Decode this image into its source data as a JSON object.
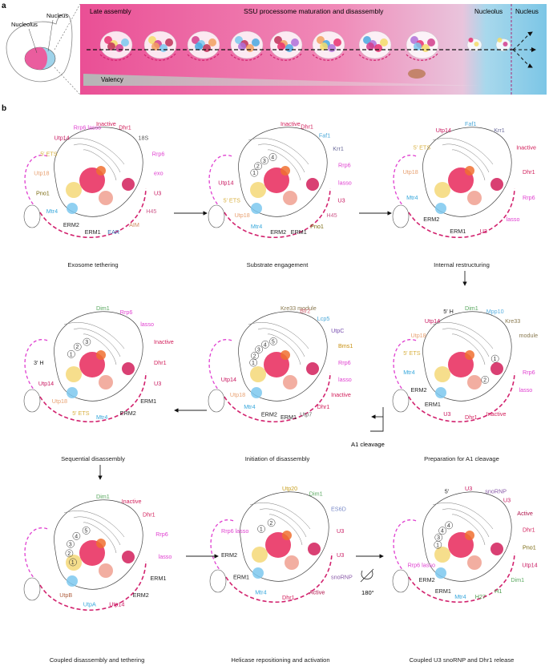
{
  "panel_a": {
    "letter": "a",
    "cell_labels": {
      "nucleolus": "Nucleolus",
      "nucleus": "Nucleus"
    },
    "banner_title": "SSU processome maturation and disassembly",
    "late_assembly": "Late assembly",
    "nucleolus": "Nucleolus",
    "nucleus": "Nucleus",
    "valency": "Valency",
    "colors": {
      "pink": "#e8559a",
      "blue": "#8ccfe8",
      "valency_bar": "#c8c8c8"
    }
  },
  "panel_b": {
    "letter": "b",
    "steps": [
      {
        "caption": "Exosome tethering",
        "labels": [
          "Inactive",
          "Dhr1",
          "18S",
          "Rrp6",
          "exo",
          "U3",
          "H45",
          "AIM",
          "EAR",
          "ERM1",
          "ERM2",
          "Mtr4",
          "Pno1",
          "Utp18",
          "5′ ETS",
          "Utp14",
          "Rrp6 lasso"
        ]
      },
      {
        "caption": "Substrate engagement",
        "labels": [
          "Inactive",
          "Dhr1",
          "Faf1",
          "Krr1",
          "Rrp6",
          "lasso",
          "U3",
          "H45",
          "Pno1",
          "ERM1",
          "ERM2",
          "Mtr4",
          "Utp18",
          "5′ ETS",
          "Utp14",
          "1",
          "2",
          "3",
          "4"
        ]
      },
      {
        "caption": "Internal restructuring",
        "labels": [
          "Faf1",
          "Krr1",
          "Inactive",
          "Dhr1",
          "Rrp6",
          "lasso",
          "U3",
          "ERM1",
          "ERM2",
          "Mtr4",
          "Utp18",
          "5′ ETS",
          "Utp14"
        ]
      },
      {
        "caption": "Preparation for A1 cleavage",
        "labels": [
          "Dim1",
          "Mpp10",
          "Kre33",
          "module",
          "1",
          "Rrp6",
          "lasso",
          "2",
          "Inactive",
          "Dhr1",
          "U3",
          "ERM1",
          "ERM2",
          "Mtr4",
          "5′ ETS",
          "Utp18",
          "Utp14",
          "5′ H"
        ]
      },
      {
        "caption": "Initiation of disassembly",
        "labels": [
          "Kre33 module",
          "Bfr2",
          "Lcp5",
          "UtpC",
          "Bms1",
          "Rrp6",
          "lasso",
          "Inactive",
          "Dhr1",
          "Utp7",
          "ERM1",
          "ERM2",
          "Mtr4",
          "Utp18",
          "Utp14",
          "1",
          "2",
          "3",
          "4",
          "5"
        ]
      },
      {
        "caption": "Sequential disassembly",
        "labels": [
          "Dim1",
          "Rrp6",
          "lasso",
          "Inactive",
          "Dhr1",
          "U3",
          "ERM1",
          "ERM2",
          "Mtr4",
          "5′ ETS",
          "Utp18",
          "Utp14",
          "3′ H",
          "1",
          "2",
          "3"
        ]
      },
      {
        "caption": "Coupled disassembly and tethering",
        "labels": [
          "Dim1",
          "Inactive",
          "Dhr1",
          "Rrp6",
          "lasso",
          "ERM1",
          "ERM2",
          "Utp14",
          "UtpA",
          "UtpB",
          "1",
          "2",
          "3",
          "4",
          "5"
        ]
      },
      {
        "caption": "Helicase repositioning and activation",
        "labels": [
          "Utp20",
          "Dim1",
          "ES6D",
          "U3",
          "U3",
          "snoRNP",
          "Active",
          "Dhr1",
          "Mtr4",
          "ERM1",
          "ERM2",
          "Rrp6 lasso",
          "1",
          "2"
        ]
      },
      {
        "caption": "Coupled U3 snoRNP and Dhr1 release",
        "labels": [
          "U3",
          "snoRNP",
          "U3",
          "Active",
          "Dhr1",
          "Pno1",
          "Utp14",
          "Dim1",
          "H1",
          "H27",
          "Mtr4",
          "ERM1",
          "ERM2",
          "Rrp6 lasso",
          "1",
          "3",
          "4",
          "4",
          "5′"
        ]
      }
    ],
    "transitions": {
      "a1_cleavage": "A1 cleavage",
      "rotation": "180°"
    }
  }
}
